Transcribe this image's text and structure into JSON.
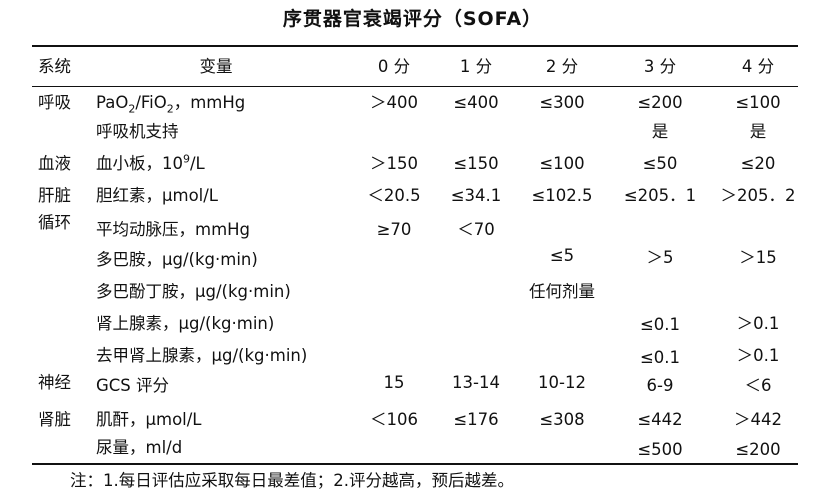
{
  "title": "序贯器官衰竭评分（SOFA）",
  "headers": {
    "system": "系统",
    "variable": "变量",
    "s0": "0 分",
    "s1": "1 分",
    "s2": "2 分",
    "s3": "3 分",
    "s4": "4 分"
  },
  "rows": {
    "resp": {
      "system": "呼吸",
      "pao2_a": "PaO",
      "pao2_sub1": "2",
      "pao2_b": "/FiO",
      "pao2_sub2": "2",
      "pao2_c": "，mmHg",
      "s0": "＞400",
      "s1": "≤400",
      "s2": "≤300",
      "s3": "≤200",
      "s4": "≤100",
      "vent": "呼吸机支持",
      "vent_s3": "是",
      "vent_s4": "是"
    },
    "blood": {
      "system": "血液",
      "var_a": "血小板，10",
      "var_sup": "9",
      "var_b": "/L",
      "s0": "＞150",
      "s1": "≤150",
      "s2": "≤100",
      "s3": "≤50",
      "s4": "≤20"
    },
    "liver": {
      "system": "肝脏",
      "variable": "胆红素，μmol/L",
      "s0": "＜20.5",
      "s1": "≤34.1",
      "s2": "≤102.5",
      "s3": "≤205．1",
      "s4": "＞205．2"
    },
    "circ": {
      "system": "循环",
      "map": "平均动脉压，mmHg",
      "map_s0": "≥70",
      "map_s1": "＜70",
      "dopa": "多巴胺，μg/(kg·min)",
      "dopa_s2": "≤5",
      "dopa_s3": "＞5",
      "dopa_s4": "＞15",
      "dobu": "多巴酚丁胺，μg/(kg·min)",
      "dobu_s2": "任何剂量",
      "epi": "肾上腺素，μg/(kg·min)",
      "epi_s3": "≤0.1",
      "epi_s4": "＞0.1",
      "norepi": "去甲肾上腺素，μg/(kg·min)",
      "norepi_s3": "≤0.1",
      "norepi_s4": "＞0.1"
    },
    "neuro": {
      "system": "神经",
      "variable": "GCS 评分",
      "s0": "15",
      "s1": "13-14",
      "s2": "10-12",
      "s3": "6-9",
      "s4": "＜6"
    },
    "renal": {
      "system": "肾脏",
      "creat": "肌酐，μmol/L",
      "creat_s0": "＜106",
      "creat_s1": "≤176",
      "creat_s2": "≤308",
      "creat_s3": "≤442",
      "creat_s4": "＞442",
      "urine": "尿量，ml/d",
      "urine_s3": "≤500",
      "urine_s4": "≤200"
    }
  },
  "note": "注：1.每日评估应采取每日最差值；2.评分越高，预后越差。"
}
